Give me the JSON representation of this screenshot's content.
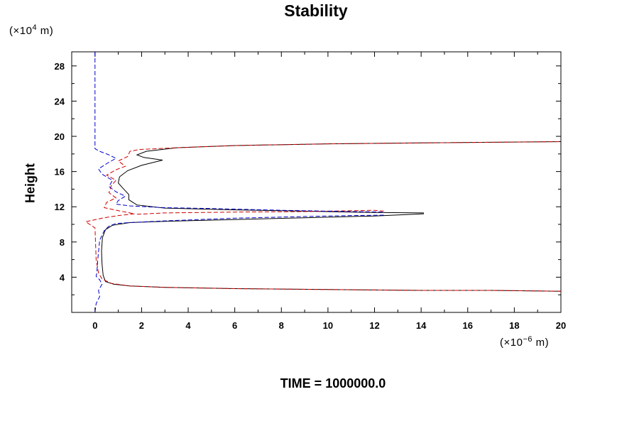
{
  "chart_data": {
    "type": "line",
    "title": "Stability",
    "ylabel": "Height",
    "y_unit": {
      "prefix": "(×10",
      "exp": "4",
      "suffix": " m)"
    },
    "x_unit": {
      "prefix": "(×10",
      "exp": "−6",
      "suffix": " m)"
    },
    "xlim": [
      -1,
      20
    ],
    "ylim": [
      0,
      29.6
    ],
    "x_ticks": [
      0,
      2,
      4,
      6,
      8,
      10,
      12,
      14,
      16,
      18,
      20
    ],
    "y_ticks": [
      4,
      8,
      12,
      16,
      20,
      24,
      28
    ],
    "grid": false,
    "series": [
      {
        "color": "#000000",
        "dash": "solid",
        "segments": [
          [
            [
              20,
              2.4
            ],
            [
              17,
              2.5
            ],
            [
              14,
              2.5
            ],
            [
              10,
              2.6
            ],
            [
              6,
              2.7
            ],
            [
              3,
              2.85
            ],
            [
              1.5,
              3.0
            ],
            [
              0.8,
              3.2
            ],
            [
              0.45,
              3.5
            ],
            [
              0.35,
              4.2
            ],
            [
              0.3,
              5.5
            ],
            [
              0.28,
              7.0
            ],
            [
              0.32,
              8.5
            ],
            [
              0.45,
              9.4
            ],
            [
              0.75,
              9.9
            ],
            [
              1.5,
              10.2
            ],
            [
              3,
              10.35
            ],
            [
              6,
              10.55
            ],
            [
              9,
              10.75
            ],
            [
              12,
              10.95
            ],
            [
              14.1,
              11.2
            ],
            [
              14.1,
              11.3
            ],
            [
              12,
              11.35
            ],
            [
              9,
              11.5
            ],
            [
              6,
              11.65
            ],
            [
              3,
              11.85
            ],
            [
              1.8,
              12.2
            ],
            [
              1.45,
              12.8
            ],
            [
              1.45,
              13.4
            ],
            [
              1.2,
              14.1
            ],
            [
              1.0,
              14.7
            ],
            [
              1.05,
              15.4
            ],
            [
              1.4,
              16.1
            ],
            [
              2.0,
              16.7
            ],
            [
              2.9,
              17.3
            ],
            [
              2.1,
              17.6
            ],
            [
              1.8,
              17.9
            ],
            [
              2.2,
              18.3
            ],
            [
              3.5,
              18.7
            ],
            [
              6,
              18.95
            ],
            [
              10,
              19.15
            ],
            [
              14,
              19.25
            ],
            [
              20,
              19.4
            ]
          ]
        ]
      },
      {
        "color": "#cc0000",
        "dash": "dashed",
        "segments": [
          [
            [
              20,
              2.4
            ],
            [
              17,
              2.5
            ],
            [
              14,
              2.5
            ],
            [
              10,
              2.6
            ],
            [
              6,
              2.7
            ],
            [
              3,
              2.85
            ],
            [
              1.5,
              3.0
            ],
            [
              0.7,
              3.3
            ],
            [
              0.3,
              3.8
            ],
            [
              0.15,
              4.5
            ],
            [
              0.05,
              6
            ],
            [
              0,
              9.6
            ],
            [
              -0.4,
              10.3
            ],
            [
              0.3,
              10.7
            ],
            [
              1.0,
              11.0
            ],
            [
              1.7,
              11.2
            ],
            [
              1.1,
              11.5
            ],
            [
              0.4,
              11.9
            ],
            [
              0.5,
              12.5
            ],
            [
              0.9,
              13.0
            ],
            [
              0.6,
              13.6
            ],
            [
              0.7,
              14.4
            ],
            [
              0.9,
              15.0
            ],
            [
              0.5,
              15.6
            ],
            [
              0.9,
              16.2
            ],
            [
              1.3,
              16.6
            ],
            [
              1.0,
              17.2
            ],
            [
              1.4,
              17.7
            ],
            [
              1.5,
              18.3
            ],
            [
              1.9,
              18.5
            ],
            [
              3.5,
              18.7
            ],
            [
              6,
              18.95
            ],
            [
              10,
              19.15
            ],
            [
              14,
              19.25
            ],
            [
              20,
              19.4
            ]
          ],
          [
            [
              1.8,
              11.15
            ],
            [
              3,
              11.3
            ],
            [
              6,
              11.4
            ],
            [
              9,
              11.45
            ],
            [
              12,
              11.6
            ],
            [
              12.4,
              11.5
            ]
          ]
        ]
      },
      {
        "color": "#0000cc",
        "dash": "dashed",
        "segments": [
          [
            [
              0,
              29.6
            ],
            [
              0,
              18.6
            ],
            [
              0.2,
              18.3
            ],
            [
              0.6,
              17.9
            ],
            [
              0.9,
              17.5
            ],
            [
              0.5,
              16.9
            ],
            [
              0.15,
              16.3
            ],
            [
              0.3,
              15.7
            ],
            [
              0.75,
              15.0
            ],
            [
              0.6,
              14.3
            ],
            [
              0.9,
              13.7
            ],
            [
              1.3,
              13.2
            ],
            [
              1.0,
              12.7
            ],
            [
              0.9,
              12.3
            ],
            [
              1.5,
              12.1
            ],
            [
              3,
              11.9
            ],
            [
              5,
              11.8
            ],
            [
              8,
              11.6
            ],
            [
              11,
              11.45
            ],
            [
              12.4,
              11.4
            ]
          ],
          [
            [
              12.4,
              11.05
            ],
            [
              10,
              10.95
            ],
            [
              6,
              10.7
            ],
            [
              3,
              10.4
            ],
            [
              1.5,
              10.2
            ],
            [
              0.9,
              10.1
            ],
            [
              0.6,
              9.8
            ],
            [
              0.4,
              9.3
            ],
            [
              0.2,
              8.2
            ],
            [
              0.12,
              6
            ],
            [
              0.08,
              4.5
            ],
            [
              0.05,
              4.1
            ],
            [
              0.2,
              3.7
            ],
            [
              0.3,
              3.2
            ],
            [
              0.15,
              2.5
            ],
            [
              0.2,
              1.8
            ],
            [
              0.05,
              1.0
            ],
            [
              0,
              0
            ]
          ]
        ]
      }
    ]
  },
  "time_label": "TIME = 1000000.0"
}
